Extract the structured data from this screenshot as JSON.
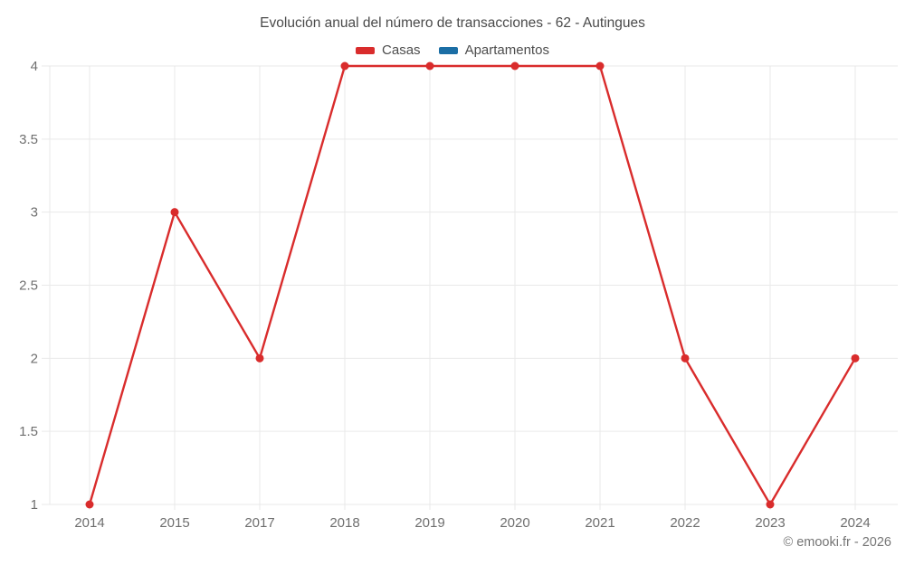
{
  "header": {
    "title": "Evolución anual del número de transacciones - 62 - Autingues"
  },
  "legend": [
    {
      "label": "Casas",
      "color": "#d92c2c"
    },
    {
      "label": "Apartamentos",
      "color": "#1b6ea5"
    }
  ],
  "footer": {
    "text": "© emooki.fr - 2026"
  },
  "colors": {
    "grid": "#e9e9e9",
    "tick_text": "#6f6f6f",
    "title_text": "#4a4a4a",
    "casas": "#d92c2c",
    "apartamentos": "#1b6ea5",
    "background": "#ffffff"
  },
  "chart_data": {
    "type": "line",
    "title": "Evolución anual del número de transacciones - 62 - Autingues",
    "categories": [
      "2014",
      "2015",
      "2017",
      "2018",
      "2019",
      "2020",
      "2021",
      "2022",
      "2023",
      "2024"
    ],
    "series": [
      {
        "name": "Casas",
        "color": "#d92c2c",
        "values": [
          1,
          3,
          2,
          4,
          4,
          4,
          4,
          2,
          1,
          2
        ]
      },
      {
        "name": "Apartamentos",
        "color": "#1b6ea5",
        "values": []
      }
    ],
    "xlabel": "",
    "ylabel": "",
    "ylim": [
      1,
      4
    ],
    "yticks": [
      1,
      1.5,
      2,
      2.5,
      3,
      3.5,
      4
    ],
    "grid": true,
    "legend_position": "top",
    "marker": "circle"
  }
}
